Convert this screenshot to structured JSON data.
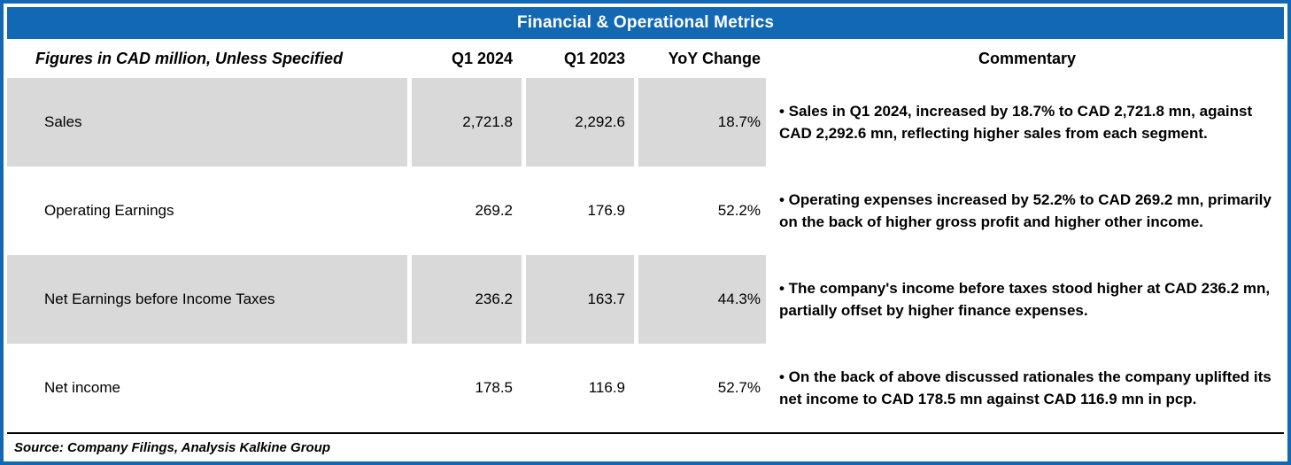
{
  "title": "Financial & Operational Metrics",
  "columns": {
    "label": "Figures in CAD million, Unless Specified",
    "q1_2024": "Q1 2024",
    "q1_2023": "Q1 2023",
    "yoy": "YoY Change",
    "commentary": "Commentary"
  },
  "rows": [
    {
      "label": "Sales",
      "q1_2024": "2,721.8",
      "q1_2023": "2,292.6",
      "yoy": "18.7%",
      "commentary": "• Sales in Q1 2024, increased by 18.7% to CAD 2,721.8 mn, against CAD 2,292.6 mn, reflecting higher sales from each segment."
    },
    {
      "label": "Operating Earnings",
      "q1_2024": "269.2",
      "q1_2023": "176.9",
      "yoy": "52.2%",
      "commentary": "• Operating expenses increased by 52.2% to CAD 269.2 mn, primarily on the back of higher gross profit and higher other income."
    },
    {
      "label": "Net Earnings before Income Taxes",
      "q1_2024": "236.2",
      "q1_2023": "163.7",
      "yoy": "44.3%",
      "commentary": "• The company's income before taxes stood higher at CAD 236.2 mn, partially offset by higher finance expenses."
    },
    {
      "label": "Net income",
      "q1_2024": "178.5",
      "q1_2023": "116.9",
      "yoy": "52.7%",
      "commentary": "• On the back of above discussed rationales the company uplifted its net income to CAD 178.5 mn against CAD 116.9 mn in pcp."
    }
  ],
  "source": "Source: Company Filings, Analysis Kalkine Group",
  "colors": {
    "accent_blue": "#1268B3",
    "row_shade_gray": "#D9D9D9",
    "title_text": "#FFFFFF"
  }
}
